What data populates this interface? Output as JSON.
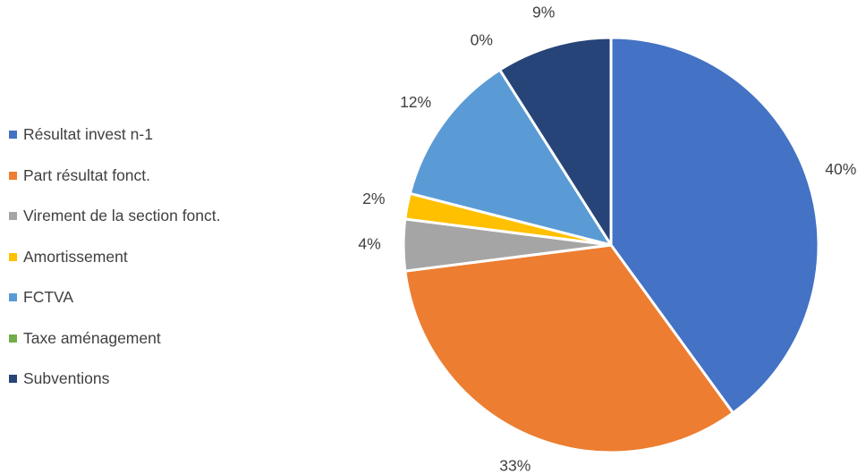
{
  "chart_data": {
    "type": "pie",
    "title": "",
    "legend_position": "left",
    "categories": [
      "Résultat invest n-1",
      "Part résultat fonct.",
      "Virement de la section fonct.",
      "Amortissement",
      "FCTVA",
      "Taxe aménagement",
      "Subventions"
    ],
    "values": [
      40,
      33,
      4,
      2,
      12,
      0,
      9
    ],
    "data_labels": [
      "40%",
      "33%",
      "4%",
      "2%",
      "12%",
      "0%",
      "9%"
    ],
    "colors": [
      "#4472C4",
      "#ED7D31",
      "#A5A5A5",
      "#FFC000",
      "#5B9BD5",
      "#70AD47",
      "#264478"
    ]
  }
}
